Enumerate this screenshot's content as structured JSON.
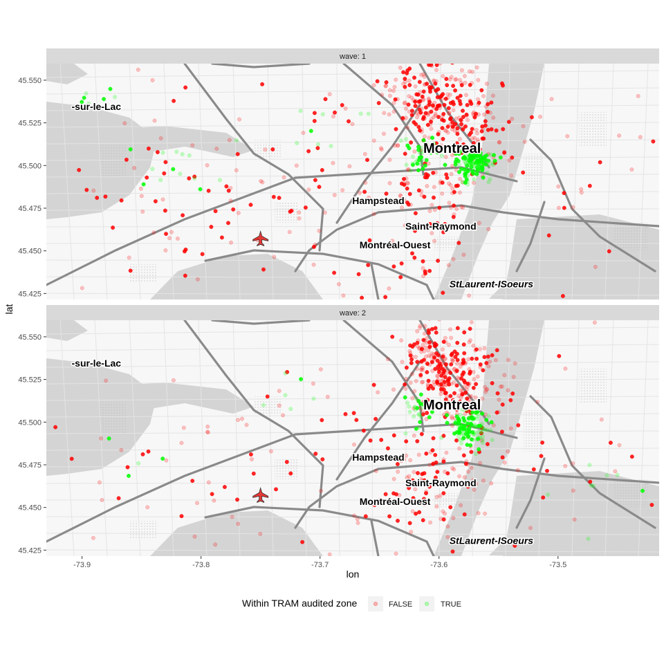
{
  "chart_data": {
    "type": "scatter",
    "basemap": "street map, light gray",
    "xlabel": "lon",
    "ylabel": "lat",
    "xlim": [
      -73.93,
      -73.415
    ],
    "ylim": [
      45.4215,
      45.5597
    ],
    "xticks": [
      -73.9,
      -73.8,
      -73.7,
      -73.6,
      -73.5
    ],
    "xtick_labels": [
      "-73.9",
      "-73.8",
      "-73.7",
      "-73.6",
      "-73.5"
    ],
    "yticks": [
      45.425,
      45.45,
      45.475,
      45.5,
      45.525,
      45.55
    ],
    "ytick_labels": [
      "45.425",
      "45.450",
      "45.475",
      "45.500",
      "45.525",
      "45.550"
    ],
    "legend": {
      "title": "Within TRAM audited zone",
      "position": "bottom",
      "entries": [
        {
          "label": "FALSE",
          "color": "#ff0000"
        },
        {
          "label": "TRUE",
          "color": "#00ff00"
        }
      ]
    },
    "place_labels": [
      {
        "text": "-sur-le-Lac",
        "lon": -73.888,
        "lat": 45.5325,
        "size": "medium"
      },
      {
        "text": "Montreal",
        "lon": -73.589,
        "lat": 45.5075,
        "size": "large"
      },
      {
        "text": "Hampstead",
        "lon": -73.651,
        "lat": 45.4775,
        "size": "medium"
      },
      {
        "text": "Saint-Raymond",
        "lon": -73.5985,
        "lat": 45.4625,
        "size": "medium"
      },
      {
        "text": "Montréal-Ouest",
        "lon": -73.637,
        "lat": 45.4515,
        "size": "medium"
      },
      {
        "text": "StLaurent-ISoeurs",
        "lon": -73.556,
        "lat": 45.4285,
        "size": "italic"
      }
    ],
    "panels": [
      {
        "strip": "wave: 1",
        "seed": 11,
        "false_clusters": [
          {
            "lon": -73.605,
            "lat": 45.538,
            "slon": 0.02,
            "slat": 0.012,
            "n": 210
          },
          {
            "lon": -73.575,
            "lat": 45.52,
            "slon": 0.018,
            "slat": 0.012,
            "n": 90
          },
          {
            "lon": -73.61,
            "lat": 45.485,
            "slon": 0.02,
            "slat": 0.012,
            "n": 70
          },
          {
            "lon": -73.675,
            "lat": 45.5,
            "slon": 0.05,
            "slat": 0.025,
            "n": 60
          },
          {
            "lon": -73.81,
            "lat": 45.48,
            "slon": 0.07,
            "slat": 0.035,
            "n": 85
          },
          {
            "lon": -73.5,
            "lat": 45.49,
            "slon": 0.05,
            "slat": 0.035,
            "n": 40
          },
          {
            "lon": -73.625,
            "lat": 45.44,
            "slon": 0.03,
            "slat": 0.012,
            "n": 30
          }
        ],
        "true_clusters": [
          {
            "lon": -73.572,
            "lat": 45.502,
            "slon": 0.008,
            "slat": 0.005,
            "n": 140
          },
          {
            "lon": -73.617,
            "lat": 45.507,
            "slon": 0.008,
            "slat": 0.005,
            "n": 40
          },
          {
            "lon": -73.82,
            "lat": 45.503,
            "slon": 0.025,
            "slat": 0.01,
            "n": 14
          },
          {
            "lon": -73.89,
            "lat": 45.54,
            "slon": 0.015,
            "slat": 0.006,
            "n": 7
          },
          {
            "lon": -73.7,
            "lat": 45.52,
            "slon": 0.02,
            "slat": 0.008,
            "n": 8
          }
        ]
      },
      {
        "strip": "wave: 2",
        "seed": 29,
        "false_clusters": [
          {
            "lon": -73.6,
            "lat": 45.535,
            "slon": 0.02,
            "slat": 0.012,
            "n": 230
          },
          {
            "lon": -73.575,
            "lat": 45.515,
            "slon": 0.018,
            "slat": 0.012,
            "n": 90
          },
          {
            "lon": -73.605,
            "lat": 45.47,
            "slon": 0.02,
            "slat": 0.012,
            "n": 80
          },
          {
            "lon": -73.67,
            "lat": 45.495,
            "slon": 0.05,
            "slat": 0.025,
            "n": 45
          },
          {
            "lon": -73.81,
            "lat": 45.47,
            "slon": 0.07,
            "slat": 0.035,
            "n": 45
          },
          {
            "lon": -73.5,
            "lat": 45.48,
            "slon": 0.05,
            "slat": 0.035,
            "n": 35
          },
          {
            "lon": -73.61,
            "lat": 45.44,
            "slon": 0.03,
            "slat": 0.012,
            "n": 25
          }
        ],
        "true_clusters": [
          {
            "lon": -73.575,
            "lat": 45.497,
            "slon": 0.008,
            "slat": 0.006,
            "n": 120
          },
          {
            "lon": -73.62,
            "lat": 45.508,
            "slon": 0.006,
            "slat": 0.005,
            "n": 25
          },
          {
            "lon": -73.72,
            "lat": 45.515,
            "slon": 0.02,
            "slat": 0.008,
            "n": 6
          },
          {
            "lon": -73.46,
            "lat": 45.465,
            "slon": 0.015,
            "slat": 0.01,
            "n": 8
          },
          {
            "lon": -73.84,
            "lat": 45.47,
            "slon": 0.02,
            "slat": 0.01,
            "n": 4
          }
        ]
      }
    ]
  }
}
